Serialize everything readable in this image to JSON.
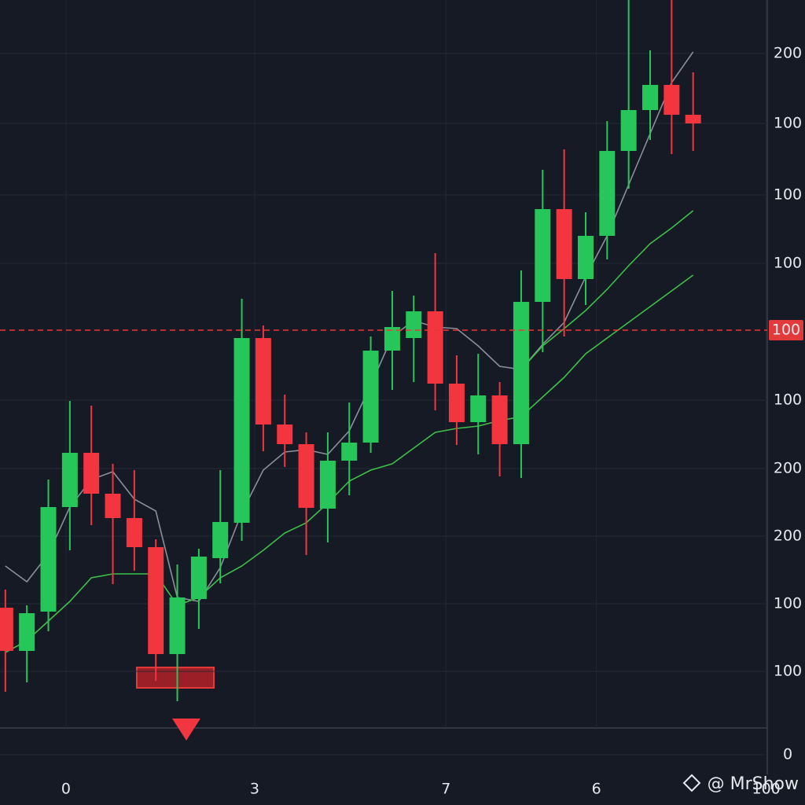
{
  "chart_data": {
    "type": "candlestick",
    "categories": [
      null,
      null,
      null,
      null,
      null,
      null,
      null,
      null,
      null,
      null,
      null,
      null,
      null,
      null,
      null,
      null,
      null,
      null,
      null,
      null,
      null,
      null,
      null,
      null,
      null,
      null,
      null,
      null,
      null,
      null,
      null,
      null,
      null
    ],
    "open": [
      187,
      132,
      182,
      315,
      384,
      332,
      301,
      264,
      128,
      198,
      250,
      295,
      530,
      420,
      395,
      313,
      374,
      397,
      514,
      530,
      564,
      472,
      423,
      457,
      395,
      576,
      694,
      605,
      660,
      768,
      820,
      852,
      814
    ],
    "high": [
      210,
      190,
      350,
      450,
      444,
      370,
      362,
      274,
      242,
      262,
      362,
      580,
      546,
      458,
      410,
      410,
      448,
      532,
      590,
      584,
      638,
      508,
      510,
      474,
      616,
      744,
      770,
      690,
      806,
      960,
      896,
      960,
      868
    ],
    "low": [
      80,
      92,
      157,
      260,
      292,
      217,
      234,
      94,
      68,
      160,
      218,
      272,
      386,
      366,
      254,
      270,
      330,
      384,
      464,
      474,
      438,
      394,
      382,
      354,
      352,
      512,
      532,
      572,
      630,
      720,
      782,
      764,
      768
    ],
    "close": [
      132,
      180,
      315,
      384,
      332,
      301,
      264,
      128,
      200,
      252,
      296,
      530,
      420,
      395,
      314,
      374,
      397,
      514,
      544,
      564,
      472,
      423,
      457,
      395,
      576,
      694,
      605,
      660,
      768,
      820,
      852,
      814,
      803
    ],
    "up_color": "#27c65a",
    "down_color": "#f2353f",
    "lines": [
      {
        "color": "#8a8f9c",
        "values": [
          240,
          220,
          255,
          315,
          350,
          360,
          325,
          310,
          200,
          195,
          238,
          308,
          362,
          385,
          388,
          382,
          412,
          470,
          532,
          552,
          544,
          542,
          520,
          494,
          490,
          522,
          550,
          608,
          660,
          725,
          790,
          855,
          894
        ]
      },
      {
        "color": "#3fbf4a",
        "values": [
          null,
          null,
          null,
          null,
          null,
          null,
          null,
          null,
          null,
          null,
          null,
          null,
          null,
          null,
          null,
          null,
          null,
          null,
          null,
          null,
          null,
          null,
          null,
          null,
          490,
          520,
          542,
          565,
          592,
          622,
          650,
          670,
          692
        ]
      },
      {
        "color": "#3fbf4a",
        "values": [
          130,
          145,
          170,
          195,
          225,
          230,
          230,
          230,
          190,
          200,
          225,
          240,
          260,
          282,
          295,
          320,
          348,
          362,
          370,
          390,
          410,
          415,
          418,
          425,
          430,
          455,
          480,
          510,
          530,
          550,
          570,
          590,
          610
        ]
      }
    ],
    "ylim": [
      0,
      960
    ],
    "yticks": [
      {
        "value": 892,
        "label": "200"
      },
      {
        "value": 803,
        "label": "100"
      },
      {
        "value": 712,
        "label": "100"
      },
      {
        "value": 625,
        "label": "100"
      },
      {
        "value": 451,
        "label": "100"
      },
      {
        "value": 364,
        "label": "200"
      },
      {
        "value": 278,
        "label": "200"
      },
      {
        "value": 192,
        "label": "100"
      },
      {
        "value": 106,
        "label": "100"
      },
      0
    ],
    "xlim": [
      -0.25,
      35.45
    ],
    "xticks": [
      {
        "value": 2.82,
        "label": "0"
      },
      {
        "value": 11.6,
        "label": "3"
      },
      {
        "value": 20.5,
        "label": "7"
      },
      {
        "value": 27.5,
        "label": "6"
      },
      {
        "value": 35.4,
        "label": "100"
      }
    ],
    "price_line": {
      "value": 540,
      "label": "100",
      "color": "#e23a3a"
    },
    "grid": true,
    "watermark": "@ MrShow"
  }
}
